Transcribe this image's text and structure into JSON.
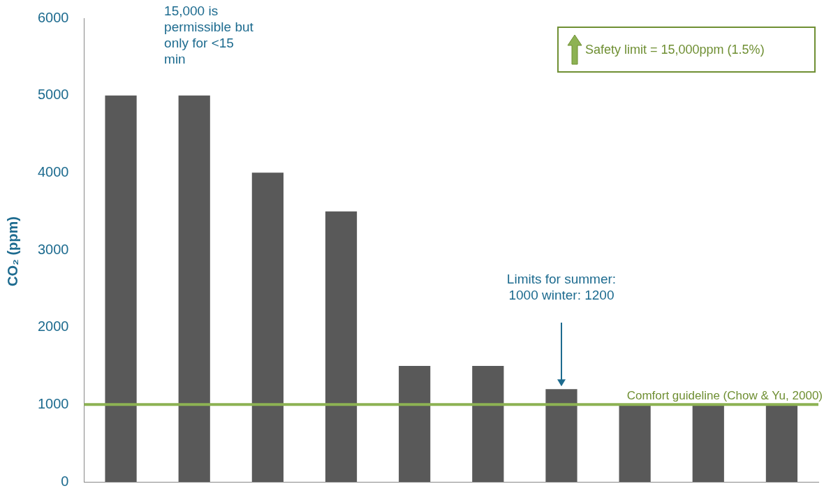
{
  "chart_data": {
    "type": "bar",
    "ylabel": "CO₂ (ppm)",
    "categories": [
      null,
      null,
      null,
      null,
      null,
      null,
      null,
      null,
      null,
      null
    ],
    "values": [
      5000,
      5000,
      4000,
      3500,
      1500,
      1500,
      1200,
      1000,
      1000,
      1000
    ],
    "color": "#595959",
    "ylim": [
      0,
      6000
    ],
    "yticks": [
      0,
      1000,
      2000,
      3000,
      4000,
      5000,
      6000
    ],
    "grid": false,
    "legend": false,
    "tick_labels": "y",
    "ref_lines": [
      {
        "axis": "y",
        "value": 1000,
        "label": "Comfort guideline (Chow & Yu, 2000)",
        "color": "#8db253"
      }
    ],
    "annotations": [
      "15,000 is permissible but only for <15 min",
      "Limits for summer: 1000 winter: 1200",
      "Safety limit = 15,000ppm (1.5%)"
    ]
  }
}
